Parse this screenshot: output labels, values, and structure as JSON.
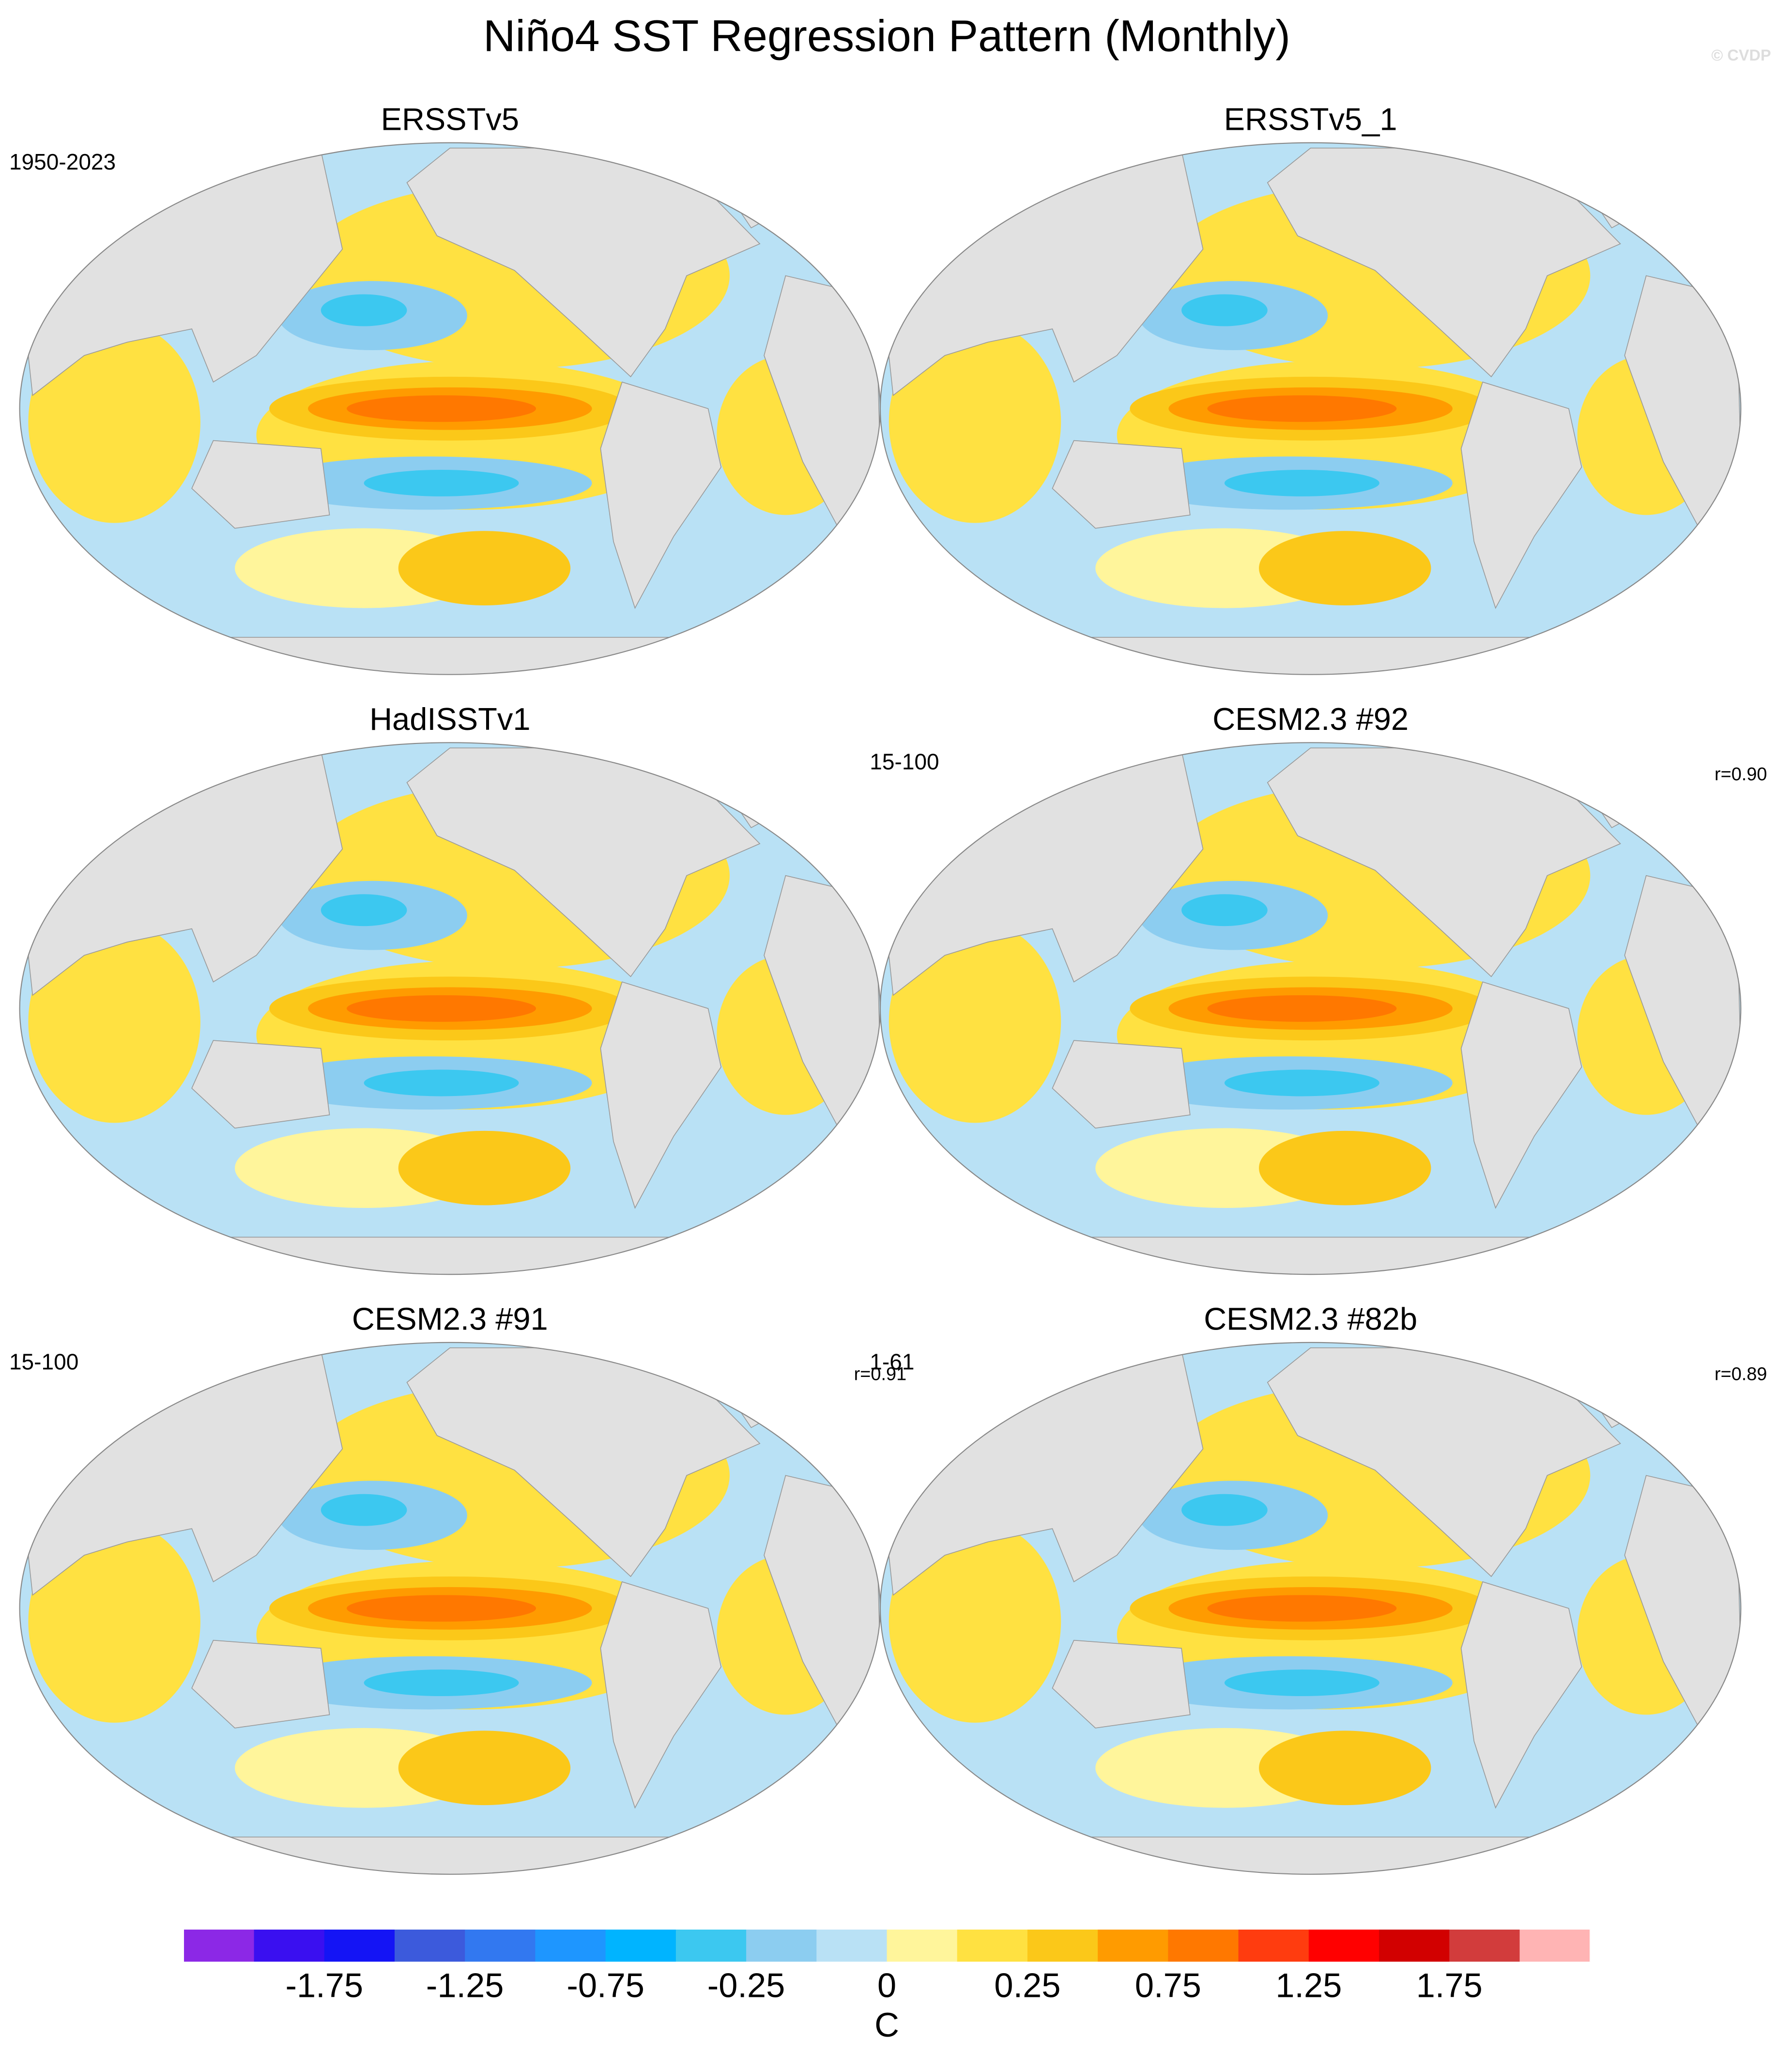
{
  "chart_data": {
    "type": "map",
    "title": "Niño4 SST Regression Pattern (Monthly)",
    "credit": "© CVDP",
    "panels": [
      {
        "title": "ERSSTv5",
        "period": "1950-2023"
      },
      {
        "title": "ERSSTv5_1"
      },
      {
        "title": "HadISSTv1"
      },
      {
        "title": "CESM2.3 #92",
        "period": "15-100",
        "r": "r=0.90"
      },
      {
        "title": "CESM2.3 #91",
        "period": "15-100",
        "r": "r=0.91"
      },
      {
        "title": "CESM2.3 #82b",
        "period": "1-61",
        "r": "r=0.89"
      }
    ],
    "colorbar": {
      "colors": [
        "#8c28e6",
        "#3a0ff0",
        "#1414f5",
        "#3c5adc",
        "#3278f0",
        "#1e96ff",
        "#00b4ff",
        "#3cc8f0",
        "#8ccdf0",
        "#b9e1f5",
        "#fff59b",
        "#ffe141",
        "#fbc819",
        "#ff9b00",
        "#ff7800",
        "#ff3c0f",
        "#ff0000",
        "#d20000",
        "#d23c3c",
        "#ffb4b4"
      ],
      "ticks": [
        -1.75,
        -1.25,
        -0.75,
        -0.25,
        0,
        0.25,
        0.75,
        1.25,
        1.75
      ],
      "label": "C"
    }
  }
}
